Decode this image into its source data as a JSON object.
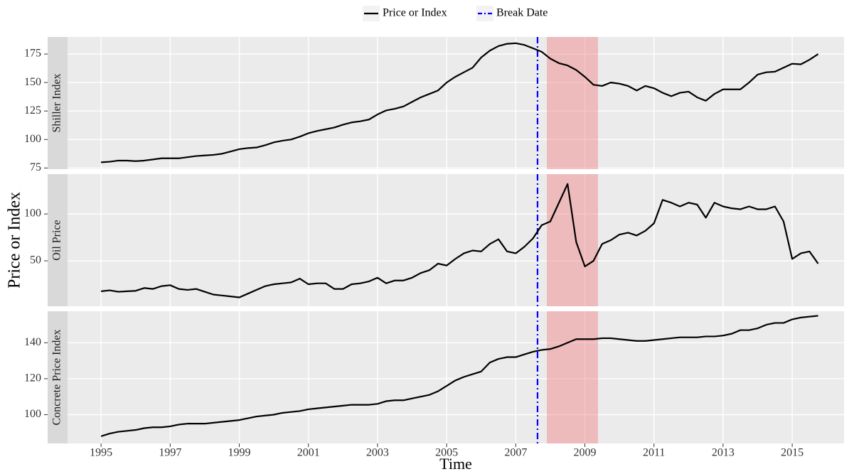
{
  "shared": {
    "legend": [
      {
        "name": "Price or Index",
        "color": "#000000"
      },
      {
        "name": "Break Date",
        "color": "#0000ff"
      }
    ],
    "ylabel": "Price or Index",
    "xlabel": "Time",
    "xlim": [
      1994.03,
      2016.5
    ],
    "xticks": [
      1995,
      1997,
      1999,
      2001,
      2003,
      2005,
      2007,
      2009,
      2011,
      2013,
      2015
    ],
    "break_date": 2007.63,
    "break_color": "#0000ff",
    "recession": [
      2007.9,
      2009.38
    ],
    "recession_color": "#f08080",
    "grid": true
  },
  "chart_data": [
    {
      "type": "line",
      "title": "Shiller Index",
      "color": "#000000",
      "ylim": [
        74,
        190
      ],
      "yticks": [
        75,
        100,
        125,
        150,
        175
      ],
      "x": [
        1995,
        1995.25,
        1995.5,
        1995.75,
        1996,
        1996.25,
        1996.5,
        1996.75,
        1997,
        1997.25,
        1997.5,
        1997.75,
        1998,
        1998.25,
        1998.5,
        1998.75,
        1999,
        1999.25,
        1999.5,
        1999.75,
        2000,
        2000.25,
        2000.5,
        2000.75,
        2001,
        2001.25,
        2001.5,
        2001.75,
        2002,
        2002.25,
        2002.5,
        2002.75,
        2003,
        2003.25,
        2003.5,
        2003.75,
        2004,
        2004.25,
        2004.5,
        2004.75,
        2005,
        2005.25,
        2005.5,
        2005.75,
        2006,
        2006.25,
        2006.5,
        2006.75,
        2007,
        2007.25,
        2007.5,
        2007.75,
        2008,
        2008.25,
        2008.5,
        2008.75,
        2009,
        2009.25,
        2009.5,
        2009.75,
        2010,
        2010.25,
        2010.5,
        2010.75,
        2011,
        2011.25,
        2011.5,
        2011.75,
        2012,
        2012.25,
        2012.5,
        2012.75,
        2013,
        2013.25,
        2013.5,
        2013.75,
        2014,
        2014.25,
        2014.5,
        2014.75,
        2015,
        2015.25,
        2015.5,
        2015.75
      ],
      "values": [
        80,
        80.5,
        81.5,
        81.5,
        81,
        81.5,
        82.5,
        83.5,
        83.5,
        83.5,
        84.5,
        85.5,
        86,
        86.5,
        87.5,
        89.5,
        91.5,
        92.5,
        93,
        95,
        97.5,
        99,
        100,
        102.5,
        105.5,
        107.5,
        109,
        110.5,
        113,
        115,
        116,
        117.5,
        122,
        125.5,
        127,
        129,
        133,
        137,
        140,
        143,
        150,
        155,
        159,
        163,
        172,
        178,
        182,
        184,
        184.5,
        183,
        180,
        177,
        171,
        167,
        165,
        161,
        155,
        148,
        147,
        150,
        149,
        147,
        143,
        147,
        145,
        141,
        138,
        141,
        142,
        137,
        134,
        140,
        144,
        144,
        144,
        150,
        157,
        159,
        159.5,
        163,
        166.5,
        166,
        170,
        175
      ]
    },
    {
      "type": "line",
      "title": "Oil Price",
      "color": "#000000",
      "ylim": [
        1.5,
        142.5
      ],
      "yticks": [
        50,
        100
      ],
      "x": [
        1995,
        1995.25,
        1995.5,
        1995.75,
        1996,
        1996.25,
        1996.5,
        1996.75,
        1997,
        1997.25,
        1997.5,
        1997.75,
        1998,
        1998.25,
        1998.5,
        1998.75,
        1999,
        1999.25,
        1999.5,
        1999.75,
        2000,
        2000.25,
        2000.5,
        2000.75,
        2001,
        2001.25,
        2001.5,
        2001.75,
        2002,
        2002.25,
        2002.5,
        2002.75,
        2003,
        2003.25,
        2003.5,
        2003.75,
        2004,
        2004.25,
        2004.5,
        2004.75,
        2005,
        2005.25,
        2005.5,
        2005.75,
        2006,
        2006.25,
        2006.5,
        2006.75,
        2007,
        2007.25,
        2007.5,
        2007.75,
        2008,
        2008.25,
        2008.5,
        2008.75,
        2009,
        2009.25,
        2009.5,
        2009.75,
        2010,
        2010.25,
        2010.5,
        2010.75,
        2011,
        2011.25,
        2011.5,
        2011.75,
        2012,
        2012.25,
        2012.5,
        2012.75,
        2013,
        2013.25,
        2013.5,
        2013.75,
        2014,
        2014.25,
        2014.5,
        2014.75,
        2015,
        2015.25,
        2015.5,
        2015.75
      ],
      "values": [
        17.5,
        18.5,
        17,
        17.5,
        18,
        21,
        20,
        23,
        24,
        20,
        19,
        20,
        17,
        14,
        13,
        12,
        11,
        15,
        19,
        23,
        25,
        26,
        27,
        31,
        25,
        26,
        26,
        20,
        20,
        25,
        26,
        28,
        32,
        26,
        29,
        29,
        32,
        37,
        40,
        47,
        45,
        52,
        58,
        61,
        60,
        68,
        73,
        60,
        58,
        65,
        74,
        88,
        92,
        112,
        132,
        70,
        44,
        50,
        68,
        72,
        78,
        80,
        77,
        82,
        90,
        115,
        112,
        108,
        112,
        110,
        96,
        112,
        108,
        106,
        105,
        108,
        105,
        105,
        108,
        92,
        52,
        58,
        60,
        47
      ]
    },
    {
      "type": "line",
      "title": "Concrete Price Index",
      "color": "#000000",
      "ylim": [
        84,
        157.5
      ],
      "yticks": [
        100,
        120,
        140
      ],
      "x": [
        1995,
        1995.25,
        1995.5,
        1995.75,
        1996,
        1996.25,
        1996.5,
        1996.75,
        1997,
        1997.25,
        1997.5,
        1997.75,
        1998,
        1998.25,
        1998.5,
        1998.75,
        1999,
        1999.25,
        1999.5,
        1999.75,
        2000,
        2000.25,
        2000.5,
        2000.75,
        2001,
        2001.25,
        2001.5,
        2001.75,
        2002,
        2002.25,
        2002.5,
        2002.75,
        2003,
        2003.25,
        2003.5,
        2003.75,
        2004,
        2004.25,
        2004.5,
        2004.75,
        2005,
        2005.25,
        2005.5,
        2005.75,
        2006,
        2006.25,
        2006.5,
        2006.75,
        2007,
        2007.25,
        2007.5,
        2007.75,
        2008,
        2008.25,
        2008.5,
        2008.75,
        2009,
        2009.25,
        2009.5,
        2009.75,
        2010,
        2010.25,
        2010.5,
        2010.75,
        2011,
        2011.25,
        2011.5,
        2011.75,
        2012,
        2012.25,
        2012.5,
        2012.75,
        2013,
        2013.25,
        2013.5,
        2013.75,
        2014,
        2014.25,
        2014.5,
        2014.75,
        2015,
        2015.25,
        2015.5,
        2015.75
      ],
      "values": [
        88,
        89.5,
        90.5,
        91,
        91.5,
        92.5,
        93,
        93,
        93.5,
        94.5,
        95,
        95,
        95,
        95.5,
        96,
        96.5,
        97,
        98,
        99,
        99.5,
        100,
        101,
        101.5,
        102,
        103,
        103.5,
        104,
        104.5,
        105,
        105.5,
        105.5,
        105.5,
        106,
        107.5,
        108,
        108,
        109,
        110,
        111,
        113,
        116,
        119,
        121,
        122.5,
        124,
        129,
        131,
        132,
        132,
        133.5,
        135,
        136,
        136.5,
        138,
        140,
        142,
        142,
        142,
        142.5,
        142.5,
        142,
        141.5,
        141,
        141,
        141.5,
        142,
        142.5,
        143,
        143,
        143,
        143.5,
        143.5,
        144,
        145,
        147,
        147,
        148,
        150,
        151,
        151,
        153,
        154,
        154.5,
        155
      ]
    }
  ]
}
